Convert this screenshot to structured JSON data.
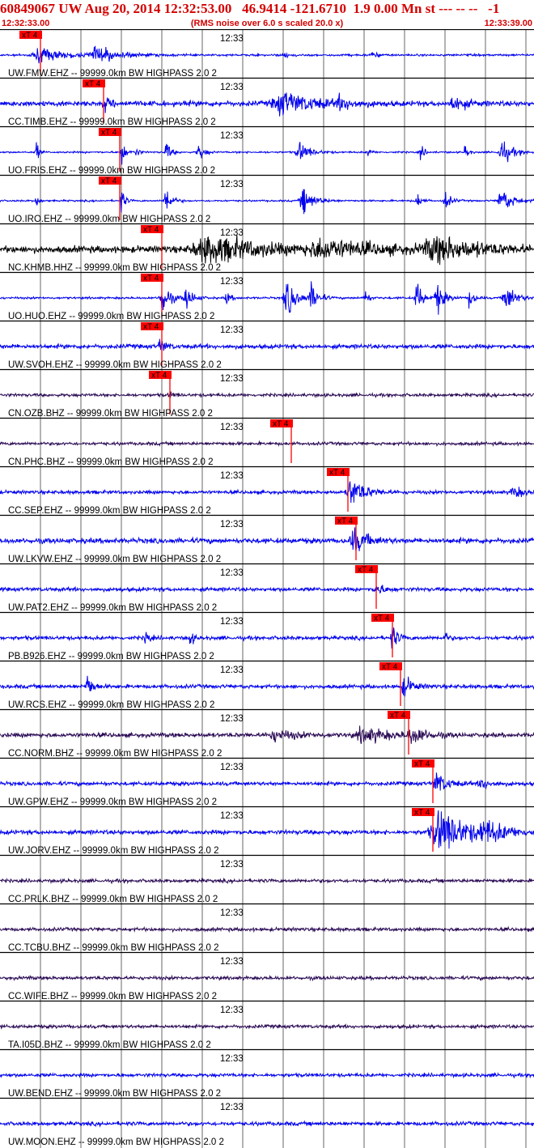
{
  "header": {
    "title": "60849067 UW Aug 20, 2014 12:32:53.00   46.9414 -121.6710  1.9 0.00 Mn st --- -- --   -1",
    "start_time": "12:32:33.00",
    "scale_note": "(RMS noise over 6.0 s scaled 20.0 x)",
    "end_time": "12:33:39.00"
  },
  "colors": {
    "trace_ehz": "#0000ee",
    "trace_hhz": "#000000",
    "trace_bhz": "#2a0a55",
    "pick": "#ff0000",
    "gridline": "#000000",
    "header": "#d40000"
  },
  "chart_data": {
    "type": "line",
    "title": "60849067 UW Aug 20, 2014 12:32:53.00",
    "x_range": [
      "12:32:33.00",
      "12:33:39.00"
    ],
    "time_span_s": 66,
    "minute_tick_label": "12:33",
    "minute_tick_time_s": 27,
    "grid_interval_s": 5,
    "pick_label": "xT 4",
    "traces": [
      {
        "label": "UW.FMW.EHZ -- 99999.0km BW  HIGHPASS  2.0  2",
        "color": "trace_ehz",
        "pick_s": 5,
        "bursts": [
          {
            "t": 5,
            "a": 8,
            "w": 3
          },
          {
            "t": 12,
            "a": 9,
            "w": 2.5
          },
          {
            "t": 35,
            "a": 4,
            "w": 0.6
          },
          {
            "t": 46,
            "a": 3,
            "w": 0.6
          }
        ],
        "noise": 1.2
      },
      {
        "label": "CC.TIMB.EHZ -- 99999.0km BW  HIGHPASS  2.0  2",
        "color": "trace_ehz",
        "pick_s": 12.8,
        "bursts": [
          {
            "t": 13,
            "a": 6,
            "w": 1
          },
          {
            "t": 35,
            "a": 14,
            "w": 3.5
          },
          {
            "t": 42,
            "a": 6,
            "w": 1.5
          },
          {
            "t": 56,
            "a": 10,
            "w": 1.2
          }
        ],
        "noise": 3
      },
      {
        "label": "UO.FRIS.EHZ -- 99999.0km BW  HIGHPASS  2.0  2",
        "color": "trace_ehz",
        "pick_s": 14.8,
        "bursts": [
          {
            "t": 4.5,
            "a": 14,
            "w": 0.3
          },
          {
            "t": 15,
            "a": 20,
            "w": 0.4
          },
          {
            "t": 16.8,
            "a": 9,
            "w": 0.3
          },
          {
            "t": 20.5,
            "a": 14,
            "w": 0.5
          },
          {
            "t": 24.5,
            "a": 12,
            "w": 0.6
          },
          {
            "t": 37,
            "a": 12,
            "w": 1.2
          },
          {
            "t": 45.5,
            "a": 8,
            "w": 0.3
          },
          {
            "t": 52,
            "a": 10,
            "w": 0.4
          },
          {
            "t": 57.5,
            "a": 14,
            "w": 0.3
          },
          {
            "t": 62,
            "a": 14,
            "w": 1.2
          }
        ],
        "noise": 1
      },
      {
        "label": "UO.IRO.EHZ -- 99999.0km BW  HIGHPASS  2.0  2",
        "color": "trace_ehz",
        "pick_s": 14.8,
        "bursts": [
          {
            "t": 4.5,
            "a": 10,
            "w": 0.3
          },
          {
            "t": 15,
            "a": 16,
            "w": 0.4
          },
          {
            "t": 20.5,
            "a": 20,
            "w": 0.6
          },
          {
            "t": 37.5,
            "a": 16,
            "w": 1.2
          },
          {
            "t": 51.5,
            "a": 10,
            "w": 0.5
          },
          {
            "t": 55,
            "a": 12,
            "w": 0.6
          },
          {
            "t": 62,
            "a": 16,
            "w": 1.2
          }
        ],
        "noise": 1
      },
      {
        "label": "NC.KHMB.HHZ -- 99999.0km BW  HIGHPASS  2.0  2",
        "color": "trace_hhz",
        "pick_s": 20,
        "bursts": [
          {
            "t": 26,
            "a": 16,
            "w": 6
          },
          {
            "t": 40,
            "a": 10,
            "w": 6
          },
          {
            "t": 54,
            "a": 14,
            "w": 5
          }
        ],
        "noise": 4
      },
      {
        "label": "UO.HUO.EHZ -- 99999.0km BW  HIGHPASS  2.0  2",
        "color": "trace_ehz",
        "pick_s": 20,
        "bursts": [
          {
            "t": 20,
            "a": 24,
            "w": 0.8
          },
          {
            "t": 23,
            "a": 14,
            "w": 0.8
          },
          {
            "t": 28,
            "a": 8,
            "w": 0.5
          },
          {
            "t": 35.5,
            "a": 22,
            "w": 1.2
          },
          {
            "t": 38.5,
            "a": 16,
            "w": 0.8
          },
          {
            "t": 45,
            "a": 14,
            "w": 0.4
          },
          {
            "t": 51.5,
            "a": 24,
            "w": 0.6
          },
          {
            "t": 54,
            "a": 20,
            "w": 0.8
          },
          {
            "t": 58,
            "a": 14,
            "w": 0.5
          },
          {
            "t": 62.5,
            "a": 20,
            "w": 1
          }
        ],
        "noise": 1.2
      },
      {
        "label": "UW.SVOH.EHZ -- 99999.0km BW  HIGHPASS  2.0  2",
        "color": "trace_ehz",
        "pick_s": 20,
        "bursts": [
          {
            "t": 19.8,
            "a": 10,
            "w": 0.6
          }
        ],
        "noise": 2.5
      },
      {
        "label": "CN.OZB.BHZ -- 99999.0km BW  HIGHPASS  2.0  2",
        "color": "trace_bhz",
        "pick_s": 21,
        "bursts": [
          {
            "t": 21,
            "a": 4,
            "w": 0.5
          }
        ],
        "noise": 1.8
      },
      {
        "label": "CN.PHC.BHZ -- 99999.0km BW  HIGHPASS  2.0  2",
        "color": "trace_bhz",
        "pick_s": 36,
        "bursts": [],
        "noise": 1.8
      },
      {
        "label": "CC.SEP.EHZ -- 99999.0km BW  HIGHPASS  2.0  2",
        "color": "trace_ehz",
        "pick_s": 43,
        "bursts": [
          {
            "t": 43.5,
            "a": 18,
            "w": 1.5
          },
          {
            "t": 63.5,
            "a": 8,
            "w": 1
          }
        ],
        "noise": 2
      },
      {
        "label": "UW.LKVW.EHZ -- 99999.0km BW  HIGHPASS  2.0  2",
        "color": "trace_ehz",
        "pick_s": 44,
        "bursts": [
          {
            "t": 43.8,
            "a": 14,
            "w": 1.5
          }
        ],
        "noise": 3
      },
      {
        "label": "UW.PAT2.EHZ -- 99999.0km BW  HIGHPASS  2.0  2",
        "color": "trace_ehz",
        "pick_s": 46.5,
        "bursts": [
          {
            "t": 46.5,
            "a": 8,
            "w": 0.8
          }
        ],
        "noise": 2.2
      },
      {
        "label": "PB.B926.EHZ -- 99999.0km BW  HIGHPASS  2.0  2",
        "color": "trace_ehz",
        "pick_s": 48.5,
        "bursts": [
          {
            "t": 18,
            "a": 14,
            "w": 0.3
          },
          {
            "t": 23.5,
            "a": 14,
            "w": 0.3
          },
          {
            "t": 48.5,
            "a": 16,
            "w": 0.6
          },
          {
            "t": 55,
            "a": 8,
            "w": 0.3
          }
        ],
        "noise": 2.2
      },
      {
        "label": "UW.RCS.EHZ -- 99999.0km BW  HIGHPASS  2.0  2",
        "color": "trace_ehz",
        "pick_s": 49.5,
        "bursts": [
          {
            "t": 10.8,
            "a": 16,
            "w": 0.6
          },
          {
            "t": 50,
            "a": 12,
            "w": 1
          }
        ],
        "noise": 2.2
      },
      {
        "label": "CC.NORM.BHZ -- 99999.0km BW  HIGHPASS  2.0  2",
        "color": "trace_bhz",
        "pick_s": 50.5,
        "bursts": [
          {
            "t": 34,
            "a": 6,
            "w": 2.5
          },
          {
            "t": 45,
            "a": 9,
            "w": 3
          },
          {
            "t": 51,
            "a": 10,
            "w": 1.5
          }
        ],
        "noise": 2.5
      },
      {
        "label": "UW.GPW.EHZ -- 99999.0km BW  HIGHPASS  2.0  2",
        "color": "trace_ehz",
        "pick_s": 53.5,
        "bursts": [
          {
            "t": 54,
            "a": 14,
            "w": 1.2
          },
          {
            "t": 59.5,
            "a": 7,
            "w": 1
          }
        ],
        "noise": 2.2
      },
      {
        "label": "UW.JORV.EHZ -- 99999.0km BW  HIGHPASS  2.0  2",
        "color": "trace_ehz",
        "pick_s": 53.5,
        "bursts": [
          {
            "t": 54.5,
            "a": 26,
            "w": 3.5
          },
          {
            "t": 60,
            "a": 10,
            "w": 2.5
          }
        ],
        "noise": 2.5
      },
      {
        "label": "CC.PRLK.BHZ -- 99999.0km BW  HIGHPASS  2.0  2",
        "color": "trace_bhz",
        "pick_s": null,
        "bursts": [],
        "noise": 2
      },
      {
        "label": "CC.TCBU.BHZ -- 99999.0km BW  HIGHPASS  2.0  2",
        "color": "trace_bhz",
        "pick_s": null,
        "bursts": [],
        "noise": 2
      },
      {
        "label": "CC.WIFE.BHZ -- 99999.0km BW  HIGHPASS  2.0  2",
        "color": "trace_bhz",
        "pick_s": null,
        "bursts": [],
        "noise": 2
      },
      {
        "label": "TA.I05D.BHZ -- 99999.0km BW  HIGHPASS  2.0  2",
        "color": "trace_bhz",
        "pick_s": null,
        "bursts": [],
        "noise": 2
      },
      {
        "label": "UW.BEND.EHZ -- 99999.0km BW  HIGHPASS  2.0  2",
        "color": "trace_ehz",
        "pick_s": null,
        "bursts": [],
        "noise": 2
      },
      {
        "label": "UW.MOON.EHZ -- 99999.0km BW  HIGHPASS  2.0  2",
        "color": "trace_ehz",
        "pick_s": null,
        "bursts": [],
        "noise": 2.2
      }
    ]
  }
}
